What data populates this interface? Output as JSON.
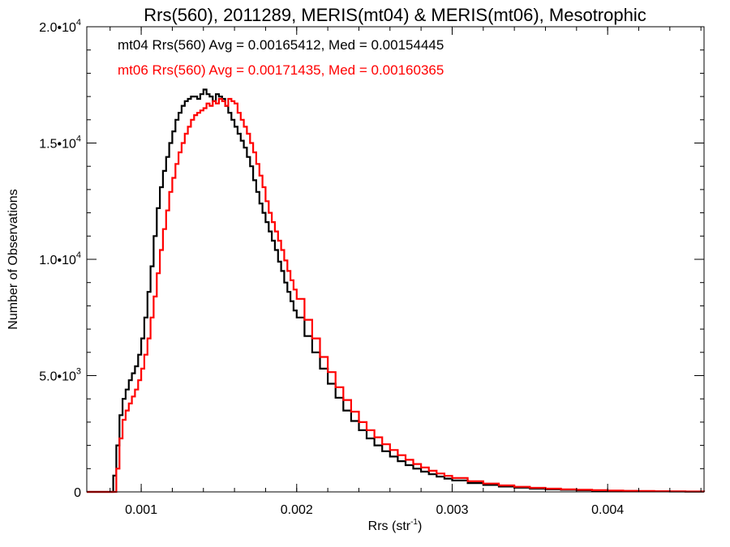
{
  "chart_data": {
    "type": "histogram",
    "title": "Rrs(560), 2011289, MERIS(mt04) & MERIS(mt06), Mesotrophic",
    "xlabel": {
      "main": "Rrs (str",
      "sup": "-1",
      "close": ")"
    },
    "ylabel": "Number of Observations",
    "xlim": [
      0.00065,
      0.00462
    ],
    "ylim": [
      0,
      20000
    ],
    "x_ticks": [
      {
        "value": 0.001,
        "label": "0.001"
      },
      {
        "value": 0.002,
        "label": "0.002"
      },
      {
        "value": 0.003,
        "label": "0.003"
      },
      {
        "value": 0.004,
        "label": "0.004"
      }
    ],
    "x_minor_step": 0.0002,
    "y_ticks": [
      {
        "value": 0,
        "label": "0",
        "exp": ""
      },
      {
        "value": 5000,
        "label": "5.0•10",
        "exp": "3"
      },
      {
        "value": 10000,
        "label": "1.0•10",
        "exp": "4"
      },
      {
        "value": 15000,
        "label": "1.5•10",
        "exp": "4"
      },
      {
        "value": 20000,
        "label": "2.0•10",
        "exp": "4"
      }
    ],
    "y_minor_step": 1000,
    "annotations": [
      {
        "text": "mt04 Rrs(560) Avg = 0.00165412, Med = 0.00154445",
        "color": "#000000"
      },
      {
        "text": "mt06 Rrs(560) Avg = 0.00171435, Med = 0.00160365",
        "color": "#ff0000"
      }
    ],
    "series": [
      {
        "color": "#000000",
        "points": [
          [
            0.00065,
            0
          ],
          [
            0.0008,
            0
          ],
          [
            0.00082,
            700
          ],
          [
            0.00084,
            2000
          ],
          [
            0.00086,
            3300
          ],
          [
            0.00088,
            4000
          ],
          [
            0.0009,
            4400
          ],
          [
            0.00092,
            4800
          ],
          [
            0.00094,
            5100
          ],
          [
            0.00096,
            5400
          ],
          [
            0.00098,
            5900
          ],
          [
            0.001,
            6600
          ],
          [
            0.00102,
            7500
          ],
          [
            0.00104,
            8600
          ],
          [
            0.00106,
            9700
          ],
          [
            0.00108,
            11000
          ],
          [
            0.0011,
            12200
          ],
          [
            0.00112,
            13100
          ],
          [
            0.00114,
            13800
          ],
          [
            0.00116,
            14400
          ],
          [
            0.00118,
            15000
          ],
          [
            0.0012,
            15500
          ],
          [
            0.00122,
            16000
          ],
          [
            0.00124,
            16300
          ],
          [
            0.00126,
            16600
          ],
          [
            0.00128,
            16800
          ],
          [
            0.0013,
            16900
          ],
          [
            0.00132,
            17000
          ],
          [
            0.00134,
            17000
          ],
          [
            0.00136,
            16900
          ],
          [
            0.00138,
            17100
          ],
          [
            0.0014,
            17300
          ],
          [
            0.00142,
            17100
          ],
          [
            0.00144,
            17000
          ],
          [
            0.00146,
            16800
          ],
          [
            0.00148,
            17100
          ],
          [
            0.0015,
            17000
          ],
          [
            0.00152,
            16900
          ],
          [
            0.00154,
            16600
          ],
          [
            0.00156,
            16300
          ],
          [
            0.00158,
            16000
          ],
          [
            0.0016,
            15700
          ],
          [
            0.00162,
            15400
          ],
          [
            0.00164,
            15100
          ],
          [
            0.00166,
            14800
          ],
          [
            0.00168,
            14400
          ],
          [
            0.0017,
            14000
          ],
          [
            0.00172,
            13400
          ],
          [
            0.00174,
            12900
          ],
          [
            0.00176,
            12400
          ],
          [
            0.00178,
            12000
          ],
          [
            0.0018,
            11600
          ],
          [
            0.00182,
            11200
          ],
          [
            0.00184,
            10800
          ],
          [
            0.00186,
            10400
          ],
          [
            0.00188,
            9900
          ],
          [
            0.0019,
            9500
          ],
          [
            0.00192,
            9000
          ],
          [
            0.00194,
            8600
          ],
          [
            0.00196,
            8200
          ],
          [
            0.00198,
            7800
          ],
          [
            0.002,
            7500
          ],
          [
            0.00205,
            6700
          ],
          [
            0.0021,
            6000
          ],
          [
            0.00215,
            5300
          ],
          [
            0.0022,
            4650
          ],
          [
            0.00225,
            4050
          ],
          [
            0.0023,
            3500
          ],
          [
            0.00235,
            3050
          ],
          [
            0.0024,
            2650
          ],
          [
            0.00245,
            2300
          ],
          [
            0.0025,
            2000
          ],
          [
            0.00255,
            1750
          ],
          [
            0.0026,
            1520
          ],
          [
            0.00265,
            1320
          ],
          [
            0.0027,
            1150
          ],
          [
            0.00275,
            1000
          ],
          [
            0.0028,
            870
          ],
          [
            0.00285,
            760
          ],
          [
            0.0029,
            660
          ],
          [
            0.00295,
            570
          ],
          [
            0.003,
            490
          ],
          [
            0.0031,
            380
          ],
          [
            0.0032,
            300
          ],
          [
            0.0033,
            230
          ],
          [
            0.0034,
            180
          ],
          [
            0.0035,
            140
          ],
          [
            0.0036,
            110
          ],
          [
            0.0037,
            90
          ],
          [
            0.0038,
            70
          ],
          [
            0.0039,
            55
          ],
          [
            0.004,
            45
          ],
          [
            0.0041,
            35
          ],
          [
            0.0042,
            28
          ],
          [
            0.0043,
            22
          ],
          [
            0.0044,
            17
          ],
          [
            0.0045,
            13
          ],
          [
            0.00462,
            10
          ]
        ]
      },
      {
        "color": "#ff0000",
        "points": [
          [
            0.00065,
            0
          ],
          [
            0.00082,
            0
          ],
          [
            0.00084,
            1000
          ],
          [
            0.00086,
            2300
          ],
          [
            0.00088,
            3100
          ],
          [
            0.0009,
            3500
          ],
          [
            0.00092,
            3800
          ],
          [
            0.00094,
            4100
          ],
          [
            0.00096,
            4400
          ],
          [
            0.00098,
            4800
          ],
          [
            0.001,
            5300
          ],
          [
            0.00102,
            5900
          ],
          [
            0.00104,
            6600
          ],
          [
            0.00106,
            7500
          ],
          [
            0.00108,
            8400
          ],
          [
            0.0011,
            9400
          ],
          [
            0.00112,
            10400
          ],
          [
            0.00114,
            11300
          ],
          [
            0.00116,
            12100
          ],
          [
            0.00118,
            12900
          ],
          [
            0.0012,
            13500
          ],
          [
            0.00122,
            14100
          ],
          [
            0.00124,
            14600
          ],
          [
            0.00126,
            15000
          ],
          [
            0.00128,
            15400
          ],
          [
            0.0013,
            15700
          ],
          [
            0.00132,
            16000
          ],
          [
            0.00134,
            16200
          ],
          [
            0.00136,
            16300
          ],
          [
            0.00138,
            16400
          ],
          [
            0.0014,
            16500
          ],
          [
            0.00142,
            16700
          ],
          [
            0.00144,
            16600
          ],
          [
            0.00146,
            16800
          ],
          [
            0.00148,
            16700
          ],
          [
            0.0015,
            16900
          ],
          [
            0.00152,
            16800
          ],
          [
            0.00154,
            16600
          ],
          [
            0.00156,
            16900
          ],
          [
            0.00158,
            16800
          ],
          [
            0.0016,
            16700
          ],
          [
            0.00162,
            16300
          ],
          [
            0.00164,
            16000
          ],
          [
            0.00166,
            15700
          ],
          [
            0.00168,
            15400
          ],
          [
            0.0017,
            15000
          ],
          [
            0.00172,
            14600
          ],
          [
            0.00174,
            14100
          ],
          [
            0.00176,
            13600
          ],
          [
            0.00178,
            13100
          ],
          [
            0.0018,
            12500
          ],
          [
            0.00182,
            12000
          ],
          [
            0.00184,
            11600
          ],
          [
            0.00186,
            11200
          ],
          [
            0.00188,
            10800
          ],
          [
            0.0019,
            10400
          ],
          [
            0.00192,
            9950
          ],
          [
            0.00194,
            9500
          ],
          [
            0.00196,
            9100
          ],
          [
            0.00198,
            8700
          ],
          [
            0.002,
            8300
          ],
          [
            0.00205,
            7400
          ],
          [
            0.0021,
            6600
          ],
          [
            0.00215,
            5800
          ],
          [
            0.0022,
            5150
          ],
          [
            0.00225,
            4500
          ],
          [
            0.0023,
            3950
          ],
          [
            0.00235,
            3450
          ],
          [
            0.0024,
            3000
          ],
          [
            0.00245,
            2650
          ],
          [
            0.0025,
            2350
          ],
          [
            0.00255,
            2050
          ],
          [
            0.0026,
            1800
          ],
          [
            0.00265,
            1580
          ],
          [
            0.0027,
            1380
          ],
          [
            0.00275,
            1200
          ],
          [
            0.0028,
            1050
          ],
          [
            0.00285,
            910
          ],
          [
            0.0029,
            790
          ],
          [
            0.00295,
            690
          ],
          [
            0.003,
            600
          ],
          [
            0.0031,
            460
          ],
          [
            0.0032,
            360
          ],
          [
            0.0033,
            280
          ],
          [
            0.0034,
            220
          ],
          [
            0.0035,
            175
          ],
          [
            0.0036,
            140
          ],
          [
            0.0037,
            110
          ],
          [
            0.0038,
            90
          ],
          [
            0.0039,
            72
          ],
          [
            0.004,
            58
          ],
          [
            0.0041,
            46
          ],
          [
            0.0042,
            37
          ],
          [
            0.0043,
            29
          ],
          [
            0.0044,
            23
          ],
          [
            0.0045,
            18
          ],
          [
            0.00462,
            14
          ]
        ]
      }
    ]
  }
}
